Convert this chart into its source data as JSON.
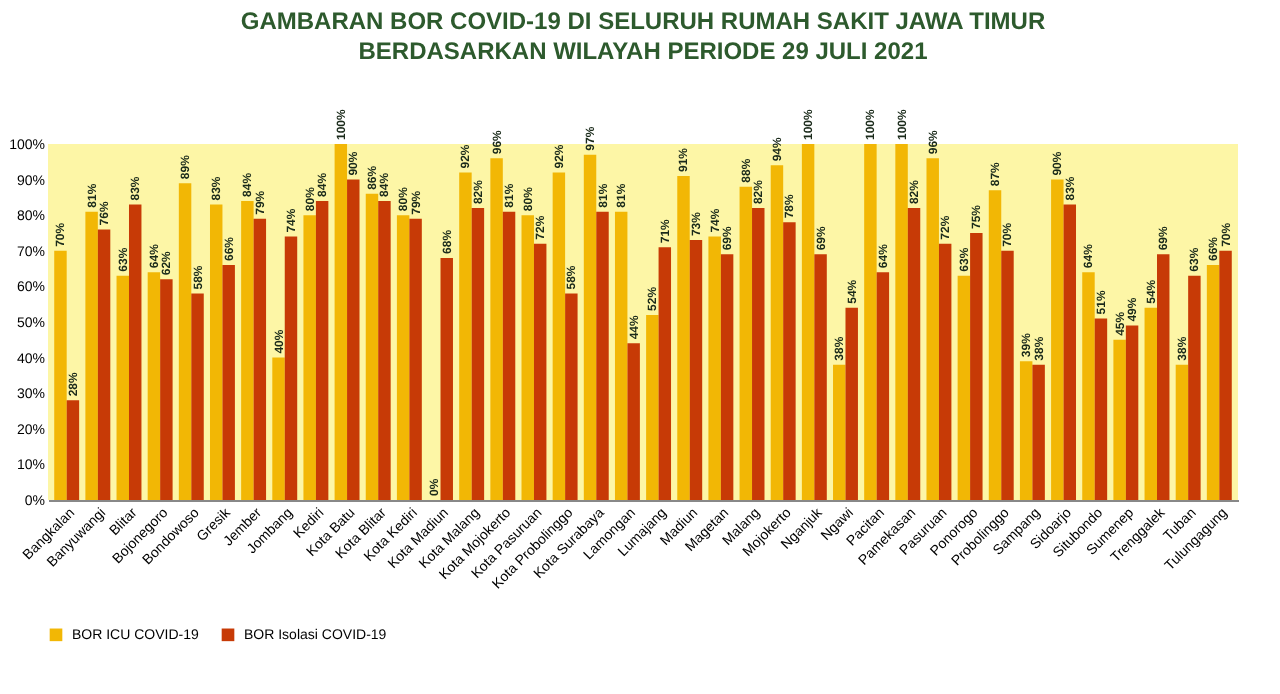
{
  "chart_data": {
    "type": "bar",
    "title": "GAMBARAN BOR COVID-19 DI SELURUH RUMAH SAKIT JAWA TIMUR",
    "subtitle": "BERDASARKAN WILAYAH PERIODE 29 JULI 2021",
    "categories": [
      "Bangkalan",
      "Banyuwangi",
      "Blitar",
      "Bojonegoro",
      "Bondowoso",
      "Gresik",
      "Jember",
      "Jombang",
      "Kediri",
      "Kota Batu",
      "Kota Blitar",
      "Kota Kediri",
      "Kota Madiun",
      "Kota Malang",
      "Kota Mojokerto",
      "Kota Pasuruan",
      "Kota Probolinggo",
      "Kota Surabaya",
      "Lamongan",
      "Lumajang",
      "Madiun",
      "Magetan",
      "Malang",
      "Mojokerto",
      "Nganjuk",
      "Ngawi",
      "Pacitan",
      "Pamekasan",
      "Pasuruan",
      "Ponorogo",
      "Probolinggo",
      "Sampang",
      "Sidoarjo",
      "Situbondo",
      "Sumenep",
      "Trenggalek",
      "Tuban",
      "Tulungagung"
    ],
    "series": [
      {
        "name": "BOR ICU COVID-19",
        "color": "#f2b705",
        "values": [
          70,
          81,
          63,
          64,
          89,
          83,
          84,
          40,
          80,
          100,
          86,
          80,
          0,
          92,
          96,
          80,
          92,
          97,
          81,
          52,
          91,
          74,
          88,
          94,
          100,
          38,
          100,
          100,
          96,
          63,
          87,
          39,
          90,
          64,
          45,
          54,
          38,
          66
        ],
        "value_labels": [
          "70%",
          "81%",
          "63%",
          "64%",
          "89%",
          "83%",
          "84%",
          "40%",
          "80%",
          "100%",
          "86%",
          "80%",
          "0%",
          "92%",
          "96%",
          "80%",
          "92%",
          "97%",
          "81%",
          "52%",
          "91%",
          "74%",
          "88%",
          "94%",
          "100%",
          "38%",
          "100%",
          "100%",
          "96%",
          "63%",
          "87%",
          "39%",
          "90%",
          "64%",
          "45%",
          "54%",
          "38%",
          "66%"
        ]
      },
      {
        "name": "BOR Isolasi COVID-19",
        "color": "#c73a06",
        "values": [
          28,
          76,
          83,
          62,
          58,
          66,
          79,
          74,
          84,
          90,
          84,
          79,
          68,
          82,
          81,
          72,
          58,
          81,
          44,
          71,
          73,
          69,
          82,
          78,
          69,
          54,
          64,
          82,
          72,
          75,
          70,
          38,
          83,
          51,
          49,
          69,
          63,
          70
        ],
        "value_labels": [
          "28%",
          "76%",
          "83%",
          "62%",
          "58%",
          "66%",
          "79%",
          "74%",
          "84%",
          "90%",
          "84%",
          "79%",
          "68%",
          "82%",
          "81%",
          "72%",
          "58%",
          "81%",
          "44%",
          "71%",
          "73%",
          "69%",
          "82%",
          "78%",
          "69%",
          "54%",
          "64%",
          "82%",
          "72%",
          "75%",
          "70%",
          "38%",
          "83%",
          "51%",
          "49%",
          "69%",
          "63%",
          "70%"
        ]
      }
    ],
    "ylim": [
      0,
      100
    ],
    "yticks": [
      {
        "value": 0,
        "label": "0%"
      },
      {
        "value": 10,
        "label": "10%"
      },
      {
        "value": 20,
        "label": "20%"
      },
      {
        "value": 30,
        "label": "30%"
      },
      {
        "value": 40,
        "label": "40%"
      },
      {
        "value": 50,
        "label": "50%"
      },
      {
        "value": 60,
        "label": "60%"
      },
      {
        "value": 70,
        "label": "70%"
      },
      {
        "value": 80,
        "label": "80%"
      },
      {
        "value": 90,
        "label": "90%"
      },
      {
        "value": 100,
        "label": "100%"
      }
    ],
    "grid": false,
    "legend": "bottom"
  }
}
